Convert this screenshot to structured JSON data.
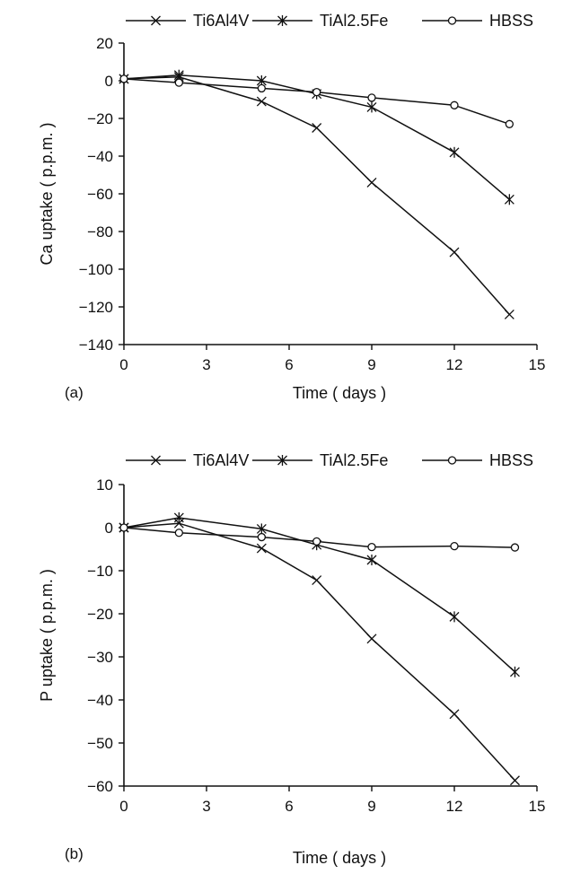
{
  "chart_data": [
    {
      "type": "line",
      "panel_label": "(a)",
      "xlabel": "Time ( days )",
      "ylabel": "Ca uptake ( p.p.m. )",
      "xlim": [
        0,
        15
      ],
      "ylim": [
        -140,
        20
      ],
      "xticks": [
        0,
        3,
        6,
        9,
        12,
        15
      ],
      "yticks": [
        20,
        0,
        -20,
        -40,
        -60,
        -80,
        -100,
        -120,
        -140
      ],
      "ytick_labels": [
        "20",
        "0",
        "−20",
        "−40",
        "−60",
        "−80",
        "−100",
        "−120",
        "−140"
      ],
      "grid": false,
      "legend_position": "top",
      "series": [
        {
          "name": "Ti6Al4V",
          "marker": "x",
          "x": [
            0,
            2,
            5,
            7,
            9,
            12,
            14
          ],
          "y": [
            1,
            2,
            -11,
            -25,
            -54,
            -91,
            -124
          ]
        },
        {
          "name": "TiAl2.5Fe",
          "marker": "asterisk",
          "x": [
            0,
            2,
            5,
            7,
            9,
            12,
            14
          ],
          "y": [
            1,
            3,
            0,
            -7,
            -14,
            -38,
            -63
          ]
        },
        {
          "name": "HBSS",
          "marker": "circle",
          "x": [
            0,
            2,
            5,
            7,
            9,
            12,
            14
          ],
          "y": [
            1,
            -1,
            -4,
            -6,
            -9,
            -13,
            -23
          ]
        }
      ]
    },
    {
      "type": "line",
      "panel_label": "(b)",
      "xlabel": "Time ( days )",
      "ylabel": "P uptake ( p.p.m. )",
      "xlim": [
        0,
        15
      ],
      "ylim": [
        -60,
        10
      ],
      "xticks": [
        0,
        3,
        6,
        9,
        12,
        15
      ],
      "yticks": [
        10,
        0,
        -10,
        -20,
        -30,
        -40,
        -50,
        -60
      ],
      "ytick_labels": [
        "10",
        "0",
        "−10",
        "−20",
        "−30",
        "−40",
        "−50",
        "−60"
      ],
      "grid": false,
      "legend_position": "top",
      "series": [
        {
          "name": "Ti6Al4V",
          "marker": "x",
          "x": [
            0,
            2,
            5,
            7,
            9,
            12,
            14.2
          ],
          "y": [
            0,
            1,
            -4.8,
            -12.2,
            -25.8,
            -43.3,
            -58.7
          ]
        },
        {
          "name": "TiAl2.5Fe",
          "marker": "asterisk",
          "x": [
            0,
            2,
            5,
            7,
            9,
            12,
            14.2
          ],
          "y": [
            0,
            2.3,
            -0.3,
            -4.0,
            -7.5,
            -20.7,
            -33.5
          ]
        },
        {
          "name": "HBSS",
          "marker": "circle",
          "x": [
            0,
            2,
            5,
            7,
            9,
            12,
            14.2
          ],
          "y": [
            0,
            -1.2,
            -2.2,
            -3.2,
            -4.5,
            -4.3,
            -4.6
          ]
        }
      ]
    }
  ]
}
